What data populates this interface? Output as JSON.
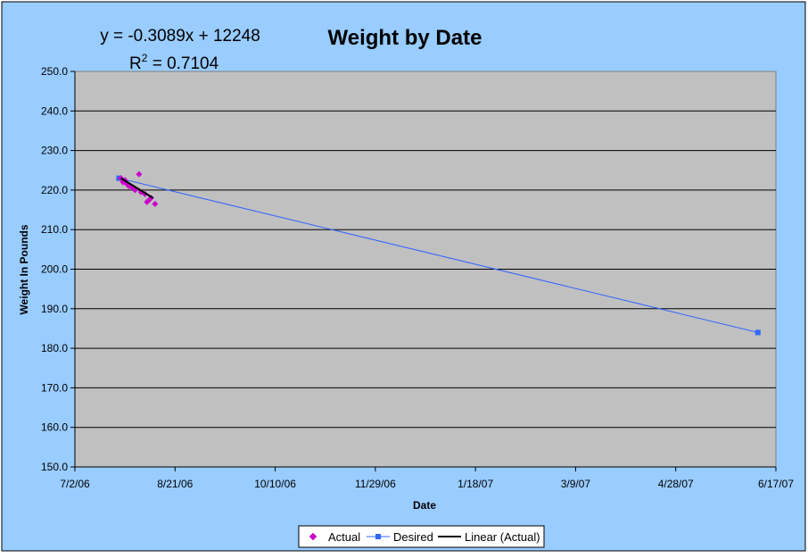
{
  "colors": {
    "chart_area": "#99ccff",
    "plot_area": "#c0c0c0",
    "gridline": "#000000",
    "actual": "#cc00cc",
    "desired": "#3366ff",
    "trendline": "#000000"
  },
  "chart_data": {
    "type": "scatter",
    "title": "Weight by Date",
    "xlabel": "Date",
    "ylabel": "Weight In Pounds",
    "x_axis_type": "date",
    "xlim": [
      "2006-07-02",
      "2007-06-17"
    ],
    "ylim": [
      150,
      250
    ],
    "x_tick_labels": [
      "7/2/06",
      "8/21/06",
      "10/10/06",
      "11/29/06",
      "1/18/07",
      "3/9/07",
      "4/28/07",
      "6/17/07"
    ],
    "y_tick_labels": [
      "150.0",
      "160.0",
      "170.0",
      "180.0",
      "190.0",
      "200.0",
      "210.0",
      "220.0",
      "230.0",
      "240.0",
      "250.0"
    ],
    "grid": "horizontal",
    "legend": {
      "position": "bottom",
      "entries": [
        "Actual",
        "Desired",
        "Linear (Actual)"
      ]
    },
    "trendline_label": {
      "equation": "y = -0.3089x + 12248",
      "r2_prefix": "R",
      "r2_sup": "2",
      "r2_suffix": " = 0.7104"
    },
    "series": [
      {
        "name": "Actual",
        "marker": "diamond",
        "line": false,
        "points": [
          {
            "x": "2006-07-25",
            "y": 223.0
          },
          {
            "x": "2006-07-26",
            "y": 222.0
          },
          {
            "x": "2006-07-27",
            "y": 222.5
          },
          {
            "x": "2006-07-28",
            "y": 221.5
          },
          {
            "x": "2006-07-29",
            "y": 221.0
          },
          {
            "x": "2006-07-31",
            "y": 220.5
          },
          {
            "x": "2006-08-01",
            "y": 220.0
          },
          {
            "x": "2006-08-03",
            "y": 224.0
          },
          {
            "x": "2006-08-04",
            "y": 219.5
          },
          {
            "x": "2006-08-06",
            "y": 219.0
          },
          {
            "x": "2006-08-07",
            "y": 217.0
          },
          {
            "x": "2006-08-08",
            "y": 217.5
          },
          {
            "x": "2006-08-09",
            "y": 218.0
          },
          {
            "x": "2006-08-11",
            "y": 216.5
          }
        ]
      },
      {
        "name": "Desired",
        "marker": "square",
        "line": true,
        "points": [
          {
            "x": "2006-07-24",
            "y": 223.0
          },
          {
            "x": "2007-06-08",
            "y": 184.0
          }
        ]
      },
      {
        "name": "Linear (Actual)",
        "type": "trendline",
        "points": [
          {
            "x": "2006-07-25",
            "y": 223.0
          },
          {
            "x": "2006-08-10",
            "y": 218.0
          }
        ]
      }
    ]
  }
}
